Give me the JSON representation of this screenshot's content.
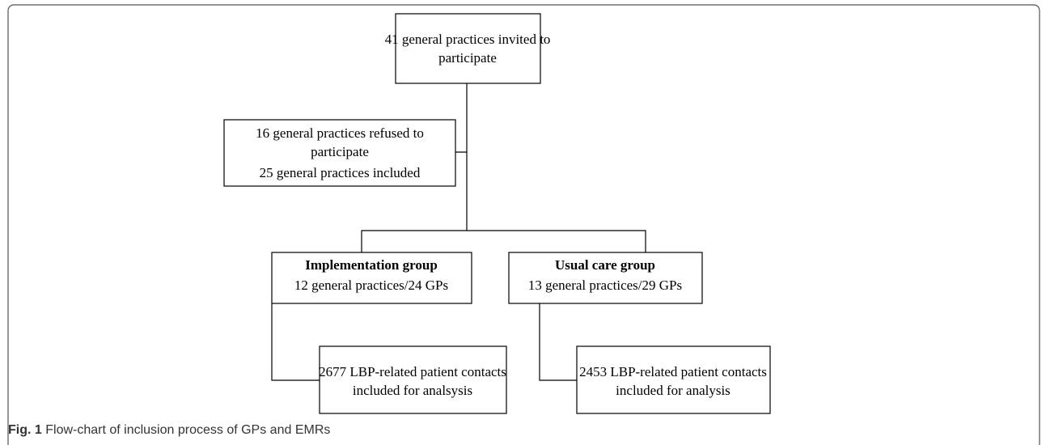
{
  "nodes": [
    {
      "lines": [
        "41 general practices invited to",
        "participate"
      ]
    },
    {
      "lines": [
        "16 general practices refused to",
        "participate",
        "25 general practices included"
      ]
    },
    {
      "title": "Implementation group",
      "lines": [
        "12 general practices/24 GPs"
      ]
    },
    {
      "title": "Usual care group",
      "lines": [
        "13 general practices/29 GPs"
      ]
    },
    {
      "lines": [
        "2677 LBP-related patient contacts",
        "included for analsysis"
      ]
    },
    {
      "lines": [
        "2453 LBP-related patient contacts",
        "included for analysis"
      ]
    }
  ],
  "caption": {
    "label": "Fig. 1",
    "text": "Flow-chart of inclusion process of GPs and EMRs"
  }
}
